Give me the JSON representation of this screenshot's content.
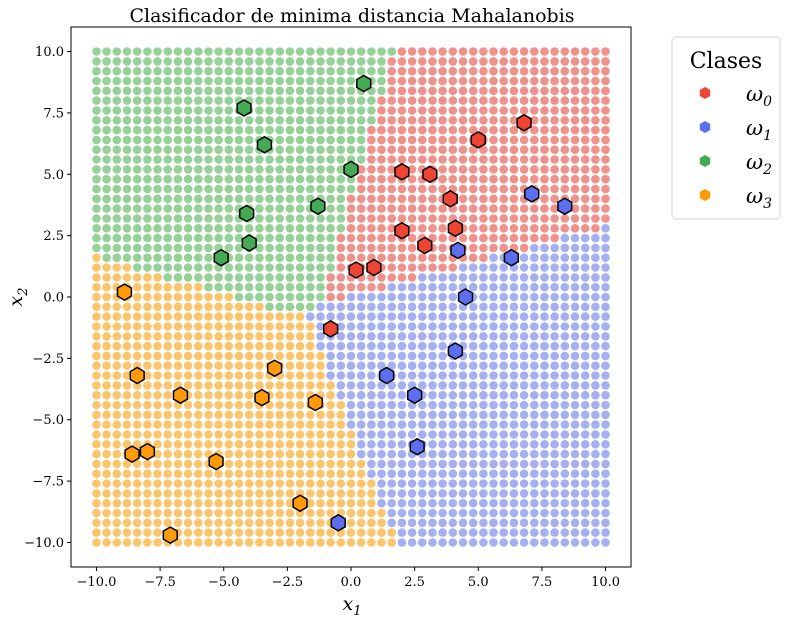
{
  "chart_data": {
    "type": "scatter",
    "title": "Clasificador de minima distancia Mahalanobis",
    "xlabel": "x",
    "xlabel_sub": "1",
    "ylabel": "x",
    "ylabel_sub": "2",
    "xlim": [
      -11,
      11
    ],
    "ylim": [
      -11,
      11
    ],
    "xticks": [
      -10.0,
      -7.5,
      -5.0,
      -2.5,
      0.0,
      2.5,
      5.0,
      7.5,
      10.0
    ],
    "yticks": [
      -10.0,
      -7.5,
      -5.0,
      -2.5,
      0.0,
      2.5,
      5.0,
      7.5,
      10.0
    ],
    "xtick_labels": [
      "−10.0",
      "−7.5",
      "−5.0",
      "−2.5",
      "0.0",
      "2.5",
      "5.0",
      "7.5",
      "10.0"
    ],
    "ytick_labels": [
      "−10.0",
      "−7.5",
      "−5.0",
      "−2.5",
      "0.0",
      "2.5",
      "5.0",
      "7.5",
      "10.0"
    ],
    "grid": false,
    "legend": {
      "title": "Clases",
      "placement": "outside-right"
    },
    "background_grid": {
      "x_range": [
        -10,
        10
      ],
      "y_range": [
        -10,
        10
      ],
      "step": 0.4
    },
    "series": [
      {
        "name": "ω",
        "sub": "0",
        "color": "#ee4433",
        "region_color": "#f0928b",
        "points": [
          [
            6.8,
            7.1
          ],
          [
            5.0,
            6.4
          ],
          [
            2.0,
            5.1
          ],
          [
            3.1,
            5.0
          ],
          [
            3.9,
            4.0
          ],
          [
            4.1,
            2.8
          ],
          [
            2.0,
            2.7
          ],
          [
            2.9,
            2.1
          ],
          [
            0.9,
            1.2
          ],
          [
            0.2,
            1.1
          ],
          [
            -0.8,
            -1.3
          ]
        ]
      },
      {
        "name": "ω",
        "sub": "1",
        "color": "#5b6ff0",
        "region_color": "#a5b0f2",
        "points": [
          [
            7.1,
            4.2
          ],
          [
            8.4,
            3.7
          ],
          [
            4.2,
            1.9
          ],
          [
            6.3,
            1.6
          ],
          [
            4.5,
            0.0
          ],
          [
            4.1,
            -2.2
          ],
          [
            1.4,
            -3.2
          ],
          [
            2.5,
            -4.0
          ],
          [
            2.6,
            -6.1
          ],
          [
            -0.5,
            -9.2
          ]
        ]
      },
      {
        "name": "ω",
        "sub": "2",
        "color": "#44aa55",
        "region_color": "#96d198",
        "points": [
          [
            0.5,
            8.7
          ],
          [
            -4.2,
            7.7
          ],
          [
            -3.4,
            6.2
          ],
          [
            0.0,
            5.2
          ],
          [
            -1.3,
            3.7
          ],
          [
            -4.1,
            3.4
          ],
          [
            -4.0,
            2.2
          ],
          [
            -5.1,
            1.6
          ]
        ]
      },
      {
        "name": "ω",
        "sub": "3",
        "color": "#ff9a0a",
        "region_color": "#fcc56c",
        "points": [
          [
            -8.9,
            0.2
          ],
          [
            -8.4,
            -3.2
          ],
          [
            -3.0,
            -2.9
          ],
          [
            -6.7,
            -4.0
          ],
          [
            -3.5,
            -4.1
          ],
          [
            -1.4,
            -4.3
          ],
          [
            -8.6,
            -6.4
          ],
          [
            -8.0,
            -6.3
          ],
          [
            -5.3,
            -6.7
          ],
          [
            -2.0,
            -8.4
          ],
          [
            -7.1,
            -9.7
          ]
        ]
      }
    ]
  }
}
